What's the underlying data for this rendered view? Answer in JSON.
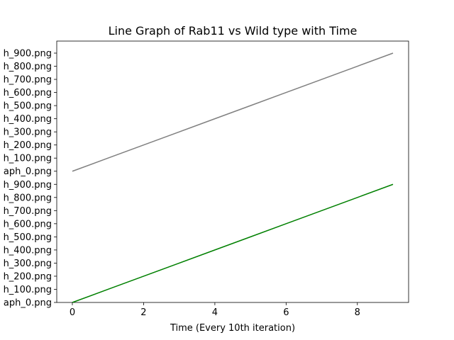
{
  "chart_data": {
    "type": "line",
    "title": "Line Graph of Rab11 vs Wild type with Time",
    "xlabel": "Time (Every 10th iteration)",
    "ylabel": "",
    "x": [
      0,
      1,
      2,
      3,
      4,
      5,
      6,
      7,
      8,
      9
    ],
    "x_ticks": [
      0,
      2,
      4,
      6,
      8
    ],
    "xlim": [
      -0.45,
      9.45
    ],
    "y_categories": [
      "aph_0.png",
      "h_100.png",
      "h_200.png",
      "h_300.png",
      "h_400.png",
      "h_500.png",
      "h_600.png",
      "h_700.png",
      "h_800.png",
      "h_900.png",
      "aph_0.png",
      "h_100.png",
      "h_200.png",
      "h_300.png",
      "h_400.png",
      "h_500.png",
      "h_600.png",
      "h_700.png",
      "h_800.png",
      "h_900.png"
    ],
    "series": [
      {
        "color": "#008000",
        "values": [
          0,
          1,
          2,
          3,
          4,
          5,
          6,
          7,
          8,
          9
        ]
      },
      {
        "color": "#808080",
        "values": [
          10,
          11,
          12,
          13,
          14,
          15,
          16,
          17,
          18,
          19
        ]
      }
    ],
    "grid": false,
    "legend": "none"
  }
}
